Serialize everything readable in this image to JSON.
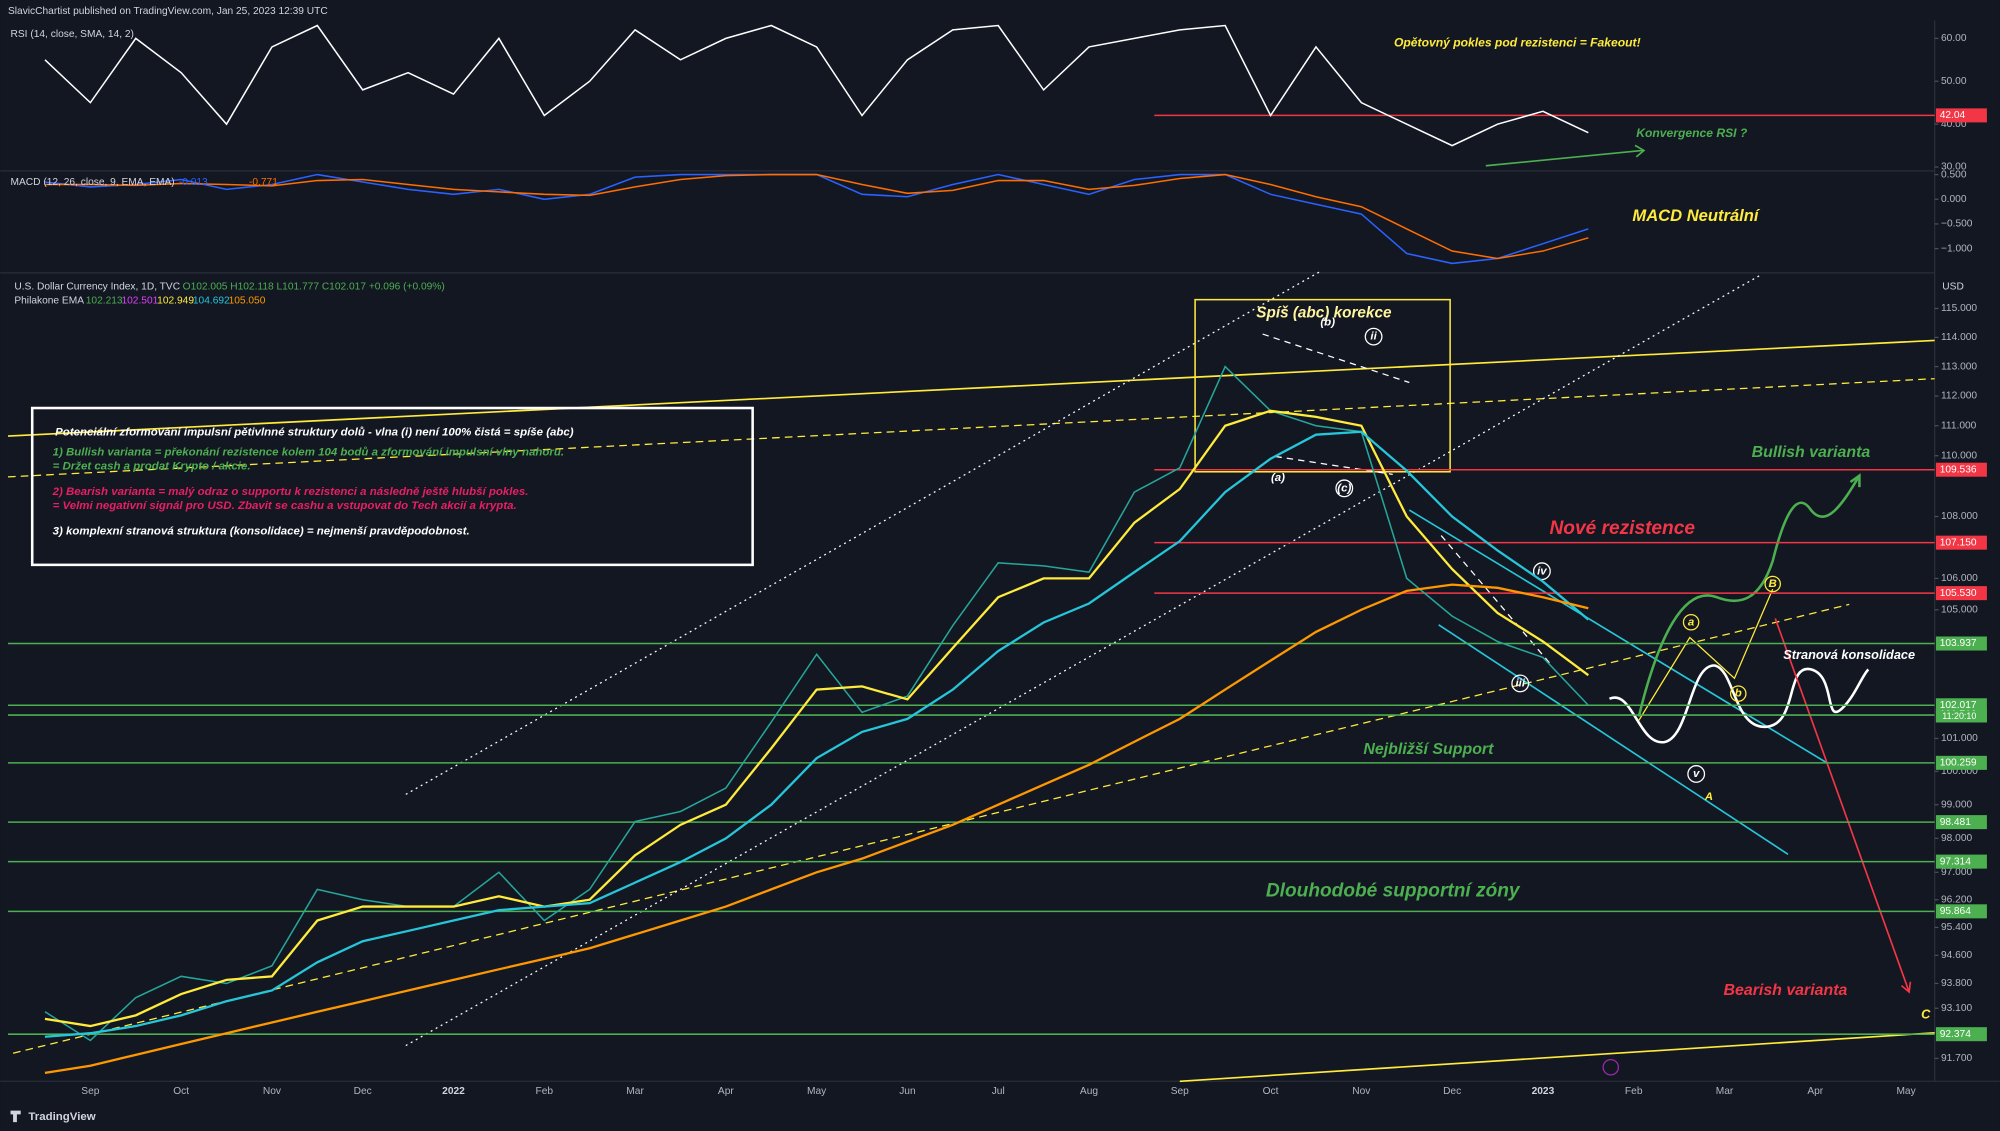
{
  "header": {
    "publisher": "SlavicChartist published on TradingView.com, Jan 25, 2023 12:39 UTC",
    "brand": "TradingView"
  },
  "chart_data": [
    {
      "type": "line",
      "title": "RSI (14, close, SMA, 14, 2)",
      "ylim": [
        29.4,
        63.6
      ],
      "yticks": [
        {
          "value": 60,
          "label": "60.00"
        },
        {
          "value": 50,
          "label": "50.00"
        },
        {
          "value": 40,
          "label": "40.00"
        },
        {
          "value": 30,
          "label": "30.00"
        }
      ],
      "series": [
        {
          "color": "#ffffff",
          "values": [
            55,
            45,
            60,
            52,
            40,
            58,
            63,
            48,
            52,
            47,
            60,
            42,
            50,
            62,
            55,
            60,
            63,
            58,
            42,
            55,
            62,
            63,
            48,
            58,
            60,
            62,
            63,
            42,
            58,
            45,
            40,
            35,
            40,
            43,
            38,
            null,
            null,
            null,
            null,
            null,
            null,
            null
          ]
        }
      ],
      "levels": [
        {
          "value": 42.04,
          "color": "#f23645"
        }
      ],
      "annotations": [
        {
          "text": "Opětovný pokles pod rezistenci = Fakeout!",
          "color": "#ffeb3b"
        },
        {
          "text": "Konvergence RSI ?",
          "color": "#4caf50"
        }
      ]
    },
    {
      "type": "line",
      "title": "MACD (12, 26, close, 9, EMA, EMA)",
      "legend_values": [
        "-0.013",
        "-0.771"
      ],
      "ylim": [
        -1.44,
        0.55
      ],
      "yticks": [
        {
          "value": 0.5,
          "label": "0.500"
        },
        {
          "value": 0,
          "label": "0.000"
        },
        {
          "value": -0.5,
          "label": "−0.500"
        },
        {
          "value": -1,
          "label": "−1.000"
        }
      ],
      "series": [
        {
          "color": "#2962ff",
          "values": [
            0.35,
            0.25,
            0.3,
            0.4,
            0.2,
            0.3,
            0.5,
            0.35,
            0.2,
            0.1,
            0.2,
            0.0,
            0.1,
            0.45,
            0.5,
            0.5,
            0.5,
            0.5,
            0.1,
            0.05,
            0.3,
            0.5,
            0.3,
            0.1,
            0.4,
            0.5,
            0.5,
            0.1,
            -0.1,
            -0.3,
            -1.1,
            -1.3,
            -1.2,
            -0.9,
            -0.6,
            null,
            null,
            null,
            null,
            null,
            null,
            null
          ]
        },
        {
          "color": "#ff6d00",
          "values": [
            0.3,
            0.3,
            0.28,
            0.32,
            0.3,
            0.27,
            0.38,
            0.4,
            0.3,
            0.2,
            0.15,
            0.1,
            0.08,
            0.25,
            0.4,
            0.48,
            0.5,
            0.5,
            0.3,
            0.12,
            0.18,
            0.38,
            0.38,
            0.2,
            0.28,
            0.42,
            0.5,
            0.3,
            0.05,
            -0.15,
            -0.6,
            -1.05,
            -1.2,
            -1.05,
            -0.78,
            null,
            null,
            null,
            null,
            null,
            null,
            null
          ]
        }
      ],
      "annotations": [
        {
          "text": "MACD Neutrální",
          "color": "#ffeb3b"
        }
      ]
    },
    {
      "type": "line",
      "title": "U.S. Dollar Currency Index, 1D, TVC",
      "ohlc": "O102.005 H102.118 L101.777 C102.017 +0.096 (+0.09%)",
      "indicator": "Philakone EMA",
      "indicator_values": [
        {
          "text": "102.213",
          "color": "#4caf50"
        },
        {
          "text": "102.501",
          "color": "#e040fb"
        },
        {
          "text": "102.949",
          "color": "#ffeb3b"
        },
        {
          "text": "104.692",
          "color": "#26c6da"
        },
        {
          "text": "105.050",
          "color": "#ff9800"
        }
      ],
      "unit": "USD",
      "log": true,
      "countdown": "11:20:10",
      "categories": [
        null,
        "Sep",
        null,
        "Oct",
        null,
        "Nov",
        null,
        "Dec",
        null,
        "2022",
        null,
        "Feb",
        null,
        "Mar",
        null,
        "Apr",
        null,
        "May",
        null,
        "Jun",
        null,
        "Jul",
        null,
        "Aug",
        null,
        "Sep",
        null,
        "Oct",
        null,
        "Nov",
        null,
        "Dec",
        null,
        "2023",
        null,
        "Feb",
        null,
        "Mar",
        null,
        "Apr",
        null,
        "May"
      ],
      "ylim": [
        91.07,
        115.44
      ],
      "yticks": [
        {
          "value": 115,
          "label": "115.000"
        },
        {
          "value": 114,
          "label": "114.000"
        },
        {
          "value": 113,
          "label": "113.000"
        },
        {
          "value": 112,
          "label": "112.000"
        },
        {
          "value": 111,
          "label": "111.000"
        },
        {
          "value": 110,
          "label": "110.000"
        },
        {
          "value": 108,
          "label": "108.000"
        },
        {
          "value": 106,
          "label": "106.000"
        },
        {
          "value": 105,
          "label": "105.000"
        },
        {
          "value": 101,
          "label": "101.000"
        },
        {
          "value": 100,
          "label": "100.000"
        },
        {
          "value": 99,
          "label": "99.000"
        },
        {
          "value": 98,
          "label": "98.000"
        },
        {
          "value": 97,
          "label": "97.000"
        },
        {
          "value": 96.2,
          "label": "96.200"
        },
        {
          "value": 95.4,
          "label": "95.400"
        },
        {
          "value": 94.6,
          "label": "94.600"
        },
        {
          "value": 93.8,
          "label": "93.800"
        },
        {
          "value": 93.1,
          "label": "93.100"
        },
        {
          "value": 91.7,
          "label": "91.700"
        }
      ],
      "series": [
        {
          "color": "#26a69a",
          "values": [
            93.0,
            92.2,
            93.4,
            94.0,
            93.8,
            94.3,
            96.5,
            96.2,
            96.0,
            96.0,
            97.0,
            95.6,
            96.5,
            98.5,
            98.8,
            99.5,
            101.5,
            103.6,
            101.8,
            102.3,
            104.5,
            106.5,
            106.4,
            106.2,
            108.8,
            109.6,
            113.0,
            111.5,
            111.0,
            110.8,
            106.0,
            104.8,
            104.0,
            103.5,
            102.017,
            null,
            null,
            null,
            null,
            null,
            null,
            null
          ]
        },
        {
          "color": "#ffeb3b",
          "values": [
            92.8,
            92.6,
            92.9,
            93.5,
            93.9,
            94.0,
            95.6,
            96.0,
            96.0,
            96.0,
            96.3,
            96.0,
            96.2,
            97.5,
            98.4,
            99.0,
            100.7,
            102.5,
            102.6,
            102.2,
            103.8,
            105.4,
            106.0,
            106.0,
            107.8,
            108.9,
            111.0,
            111.5,
            111.3,
            111.0,
            108.0,
            106.3,
            104.9,
            104.0,
            102.949,
            null,
            null,
            null,
            null,
            null,
            null,
            null
          ]
        },
        {
          "color": "#26c6da",
          "values": [
            92.3,
            92.4,
            92.6,
            92.9,
            93.3,
            93.6,
            94.4,
            95.0,
            95.3,
            95.6,
            95.9,
            96.0,
            96.1,
            96.7,
            97.3,
            98.0,
            99.0,
            100.4,
            101.2,
            101.6,
            102.5,
            103.7,
            104.6,
            105.2,
            106.2,
            107.2,
            108.8,
            109.9,
            110.7,
            110.8,
            109.5,
            108.0,
            106.9,
            105.9,
            104.692,
            null,
            null,
            null,
            null,
            null,
            null,
            null
          ]
        },
        {
          "color": "#ff9800",
          "values": [
            91.3,
            91.5,
            91.8,
            92.1,
            92.4,
            92.7,
            93.0,
            93.3,
            93.6,
            93.9,
            94.2,
            94.5,
            94.8,
            95.2,
            95.6,
            96.0,
            96.5,
            97.0,
            97.4,
            97.9,
            98.4,
            99.0,
            99.6,
            100.2,
            100.9,
            101.6,
            102.5,
            103.4,
            104.3,
            105.0,
            105.6,
            105.8,
            105.7,
            105.4,
            105.05,
            null,
            null,
            null,
            null,
            null,
            null,
            null
          ]
        }
      ],
      "levels": [
        {
          "value": 109.536,
          "color": "#f23645"
        },
        {
          "value": 107.15,
          "label": "107.150",
          "color": "#f23645"
        },
        {
          "value": 105.53,
          "label": "105.530",
          "color": "#f23645"
        },
        {
          "value": 103.937,
          "color": "#4caf50"
        },
        {
          "value": 102.017,
          "color": "#4caf50"
        },
        {
          "value": 101.716,
          "color": "#4caf50"
        },
        {
          "value": 100.259,
          "color": "#4caf50"
        },
        {
          "value": 98.481,
          "color": "#4caf50"
        },
        {
          "value": 97.314,
          "color": "#4caf50"
        },
        {
          "value": 95.864,
          "color": "#4caf50"
        },
        {
          "value": 92.374,
          "color": "#4caf50"
        }
      ],
      "annotations": [
        {
          "text": "Spíš (abc) korekce",
          "color": "#fff59d"
        },
        {
          "text": "Bullish varianta",
          "color": "#4caf50"
        },
        {
          "text": "Nové rezistence",
          "color": "#f23645"
        },
        {
          "text": "Stranová konsolidace",
          "color": "#ffffff"
        },
        {
          "text": "Nejbližší Support",
          "color": "#4caf50"
        },
        {
          "text": "Dlouhodobé supportní zóny",
          "color": "#4caf50"
        },
        {
          "text": "Bearish varianta",
          "color": "#f23645"
        },
        {
          "text": "(b)",
          "color": "#ffffff"
        },
        {
          "text": "ii",
          "color": "#ffffff"
        },
        {
          "text": "(a)",
          "color": "#ffffff"
        },
        {
          "text": "(c)",
          "color": "#ffffff"
        },
        {
          "text": "iv",
          "color": "#ffffff"
        },
        {
          "text": "iii",
          "color": "#ffffff"
        },
        {
          "text": "v",
          "color": "#ffffff"
        },
        {
          "text": "A",
          "color": "#ffeb3b"
        },
        {
          "text": "a",
          "color": "#ffeb3b"
        },
        {
          "text": "b",
          "color": "#ffeb3b"
        },
        {
          "text": "B",
          "color": "#ffeb3b"
        },
        {
          "text": "C",
          "color": "#ffeb3b"
        }
      ],
      "box_text": [
        {
          "text": "Potenciální zformování impulsní pětivlnné struktury dolů - vlna (i) není 100% čistá = spíše (abc)",
          "color": "#ffffff"
        },
        {
          "text": "1) Bullish varianta = překonání rezistence kolem 104 bodů a zformování impulsní vlny nahoru.",
          "color": "#4caf50"
        },
        {
          "text": "= Držet cash a prodat Krypto / akcie.",
          "color": "#4caf50"
        },
        {
          "text": "2) Bearish varianta = malý odraz o supportu k rezistenci a následně ještě hlubší pokles.",
          "color": "#e91e63"
        },
        {
          "text": "= Velmi negativní signál pro USD. Zbavit se cashu a vstupovat do Tech akcií a krypta.",
          "color": "#e91e63"
        },
        {
          "text": "3) komplexní stranová struktura (konsolidace) = nejmenší pravděpodobnost.",
          "color": "#ffffff"
        }
      ]
    }
  ]
}
